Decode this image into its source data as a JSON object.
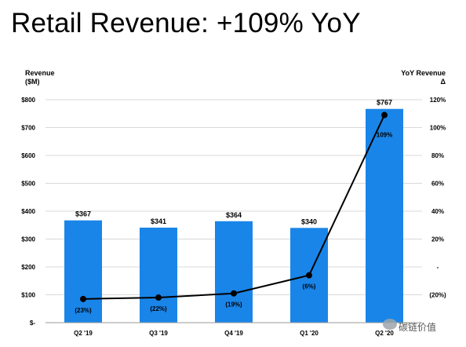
{
  "title": "Retail Revenue: +109% YoY",
  "axis_left": {
    "line1": "Revenue",
    "line2": "($M)"
  },
  "axis_right": {
    "line1": "YoY Revenue",
    "line2": "Δ"
  },
  "watermark": "碳链价值",
  "chart_data": {
    "type": "bar",
    "categories": [
      "Q2 '19",
      "Q3 '19",
      "Q4 '19",
      "Q1 '20",
      "Q2 '20"
    ],
    "series": [
      {
        "type": "bar",
        "axis": "left",
        "values": [
          367,
          341,
          364,
          340,
          767
        ],
        "labels": [
          "$367",
          "$341",
          "$364",
          "$340",
          "$767"
        ],
        "color": "#1a85e8"
      },
      {
        "type": "line",
        "axis": "right",
        "values": [
          -23,
          -22,
          -19,
          -6,
          109
        ],
        "labels": [
          "(23%)",
          "(22%)",
          "(19%)",
          "(6%)",
          "109%"
        ],
        "color": "#000000"
      }
    ],
    "y_left": {
      "lim": [
        0,
        800
      ],
      "ticks": [
        0,
        100,
        200,
        300,
        400,
        500,
        600,
        700,
        800
      ],
      "tick_labels": [
        "$-",
        "$100",
        "$200",
        "$300",
        "$400",
        "$500",
        "$600",
        "$700",
        "$800"
      ]
    },
    "y_right": {
      "lim": [
        -40,
        120
      ],
      "ticks": [
        -20,
        0,
        20,
        40,
        60,
        80,
        100,
        120
      ],
      "tick_labels": [
        "(20%)",
        "-",
        "20%",
        "40%",
        "60%",
        "80%",
        "100%",
        "120%"
      ]
    },
    "grid": true
  }
}
